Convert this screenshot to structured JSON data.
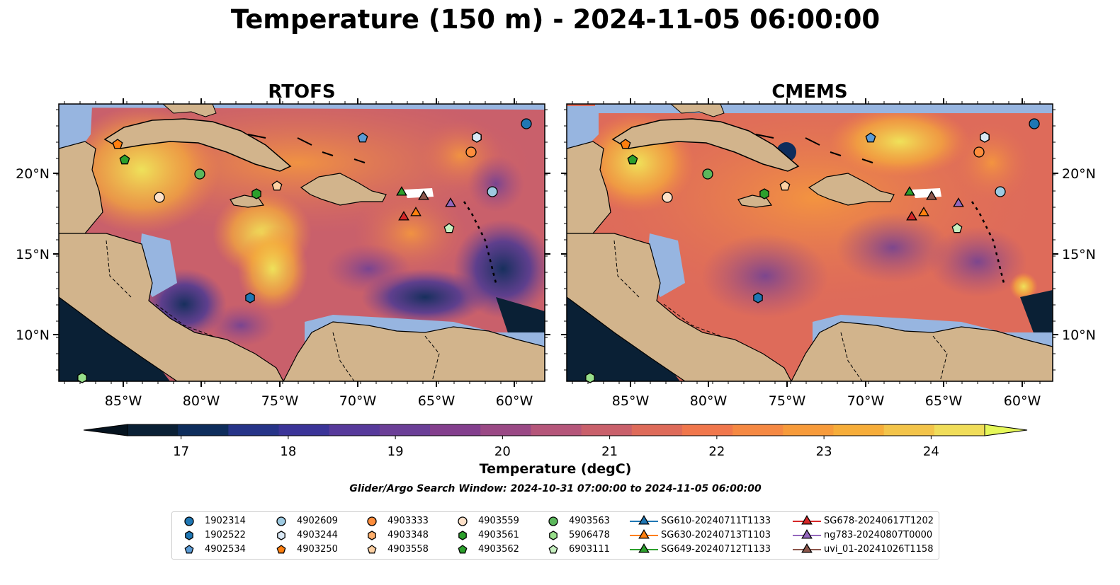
{
  "title": "Temperature (150 m) - 2024-11-05 06:00:00",
  "panels": [
    {
      "title": "RTOFS"
    },
    {
      "title": "CMEMS"
    }
  ],
  "axes": {
    "lon_ticks": [
      "85°W",
      "80°W",
      "75°W",
      "70°W",
      "65°W",
      "60°W"
    ],
    "lat_ticks": [
      "20°N",
      "15°N",
      "10°N"
    ]
  },
  "colorbar": {
    "label": "Temperature (degC)",
    "ticks": [
      "17",
      "18",
      "19",
      "20",
      "21",
      "22",
      "23",
      "24"
    ],
    "range": [
      16.5,
      24.5
    ],
    "colors": [
      "#0a2035",
      "#0e2d5c",
      "#263488",
      "#3b3498",
      "#573a9b",
      "#6b3f97",
      "#833f8d",
      "#9a4985",
      "#b5567a",
      "#c9606b",
      "#de6b5a",
      "#f0774c",
      "#f58943",
      "#f79b3b",
      "#f6ad3a",
      "#f3c44a",
      "#f0dd5a"
    ],
    "extend_low": "#05131f",
    "extend_high": "#e6f85a"
  },
  "search_window": "Glider/Argo Search Window: 2024-10-31 07:00:00 to 2024-11-05 06:00:00",
  "legend": {
    "columns": [
      [
        {
          "label": "1902314",
          "marker": "circle",
          "color": "#1f77b4"
        },
        {
          "label": "1902522",
          "marker": "hexagon",
          "color": "#1f77b4"
        },
        {
          "label": "4902534",
          "marker": "pentagon",
          "color": "#5b9bd5"
        }
      ],
      [
        {
          "label": "4902609",
          "marker": "circle",
          "color": "#9ecae1"
        },
        {
          "label": "4903244",
          "marker": "hexagon",
          "color": "#d9e8f5"
        },
        {
          "label": "4903250",
          "marker": "pentagon",
          "color": "#ff7f0e"
        }
      ],
      [
        {
          "label": "4903333",
          "marker": "circle",
          "color": "#fd8d3c"
        },
        {
          "label": "4903348",
          "marker": "hexagon",
          "color": "#fdae6b"
        },
        {
          "label": "4903558",
          "marker": "pentagon",
          "color": "#fdd0a2"
        }
      ],
      [
        {
          "label": "4903559",
          "marker": "circle",
          "color": "#fde0c8"
        },
        {
          "label": "4903561",
          "marker": "hexagon",
          "color": "#2ca02c"
        },
        {
          "label": "4903562",
          "marker": "pentagon",
          "color": "#2ca02c"
        }
      ],
      [
        {
          "label": "4903563",
          "marker": "circle",
          "color": "#5cb85c"
        },
        {
          "label": "5906478",
          "marker": "hexagon",
          "color": "#98df8a"
        },
        {
          "label": "6903111",
          "marker": "pentagon",
          "color": "#c7f0c0"
        }
      ],
      [
        {
          "label": "SG610-20240711T1133",
          "marker": "triangle-line",
          "color": "#1f77b4"
        },
        {
          "label": "SG630-20240713T1103",
          "marker": "triangle-line",
          "color": "#ff7f0e"
        },
        {
          "label": "SG649-20240712T1133",
          "marker": "triangle-line",
          "color": "#2ca02c"
        }
      ],
      [
        {
          "label": "SG678-20240617T1202",
          "marker": "triangle-line",
          "color": "#d62728"
        },
        {
          "label": "ng783-20240807T0000",
          "marker": "triangle-line",
          "color": "#9467bd"
        },
        {
          "label": "uvi_01-20241026T1158",
          "marker": "triangle-line",
          "color": "#8c564b"
        }
      ]
    ]
  },
  "map_colors": {
    "land": "#d2b48c",
    "shallow": "#97b5e0",
    "deep_cold": "#0a2035",
    "coast": "#000000",
    "rivers": "#8fb0d8"
  }
}
